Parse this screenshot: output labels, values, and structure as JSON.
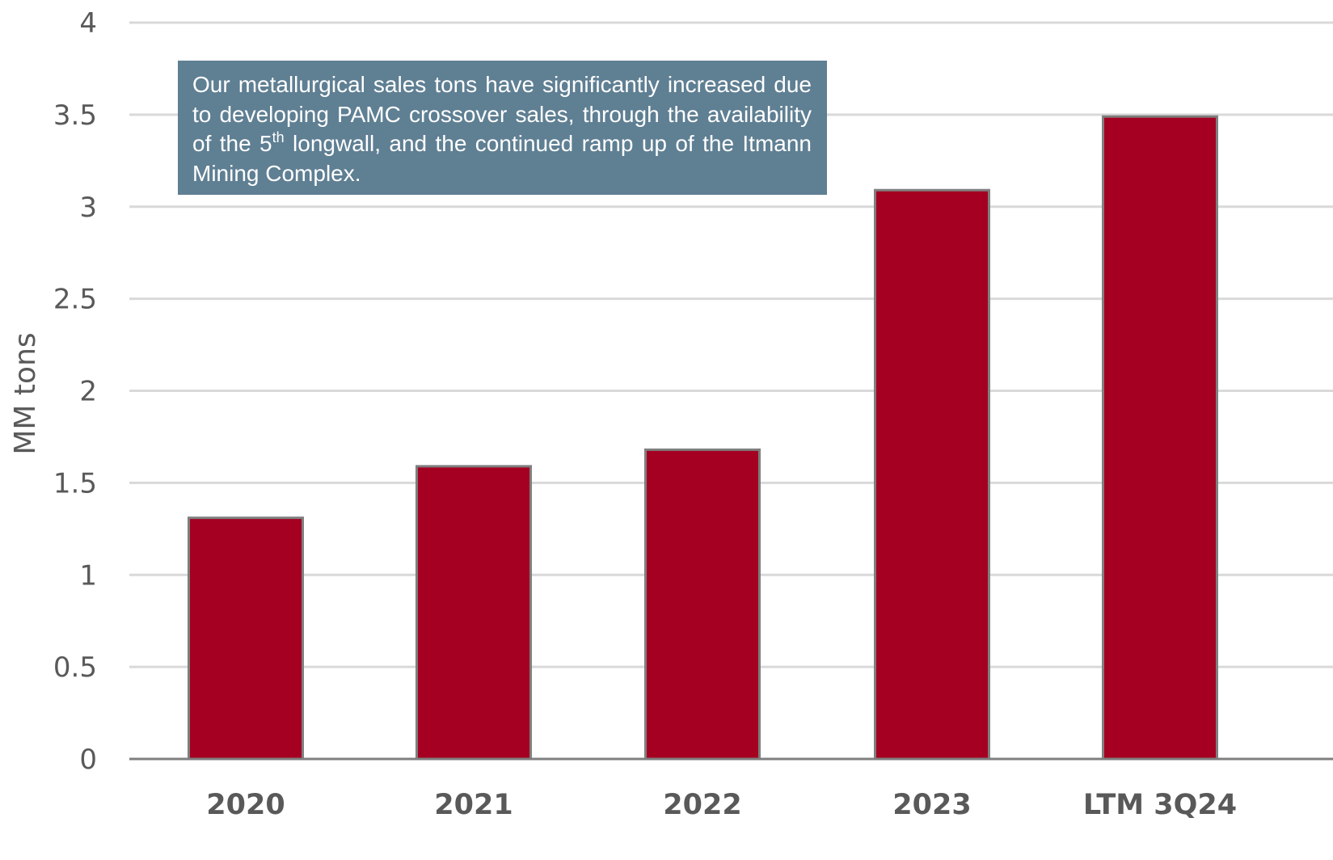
{
  "chart_data": {
    "type": "bar",
    "title": "",
    "xlabel": "",
    "ylabel": "MM tons",
    "ylim": [
      0,
      4
    ],
    "yticks": [
      "0",
      "0.5",
      "1",
      "1.5",
      "2",
      "2.5",
      "3",
      "3.5",
      "4"
    ],
    "categories": [
      "2020",
      "2021",
      "2022",
      "2023",
      "LTM 3Q24"
    ],
    "values": [
      1.31,
      1.59,
      1.68,
      3.09,
      3.49
    ],
    "bar_color": "#a50021",
    "bar_outline_color": "#7f7f7f",
    "grid": true,
    "legend": "none"
  },
  "annotation": {
    "before_sup": "Our metallurgical sales tons have significantly increased due to developing PAMC crossover sales, through the availability of the 5",
    "sup": "th",
    "after_sup": " longwall, and the continued ramp up of the Itmann Mining Complex.",
    "background_color": "#5f7f93"
  }
}
